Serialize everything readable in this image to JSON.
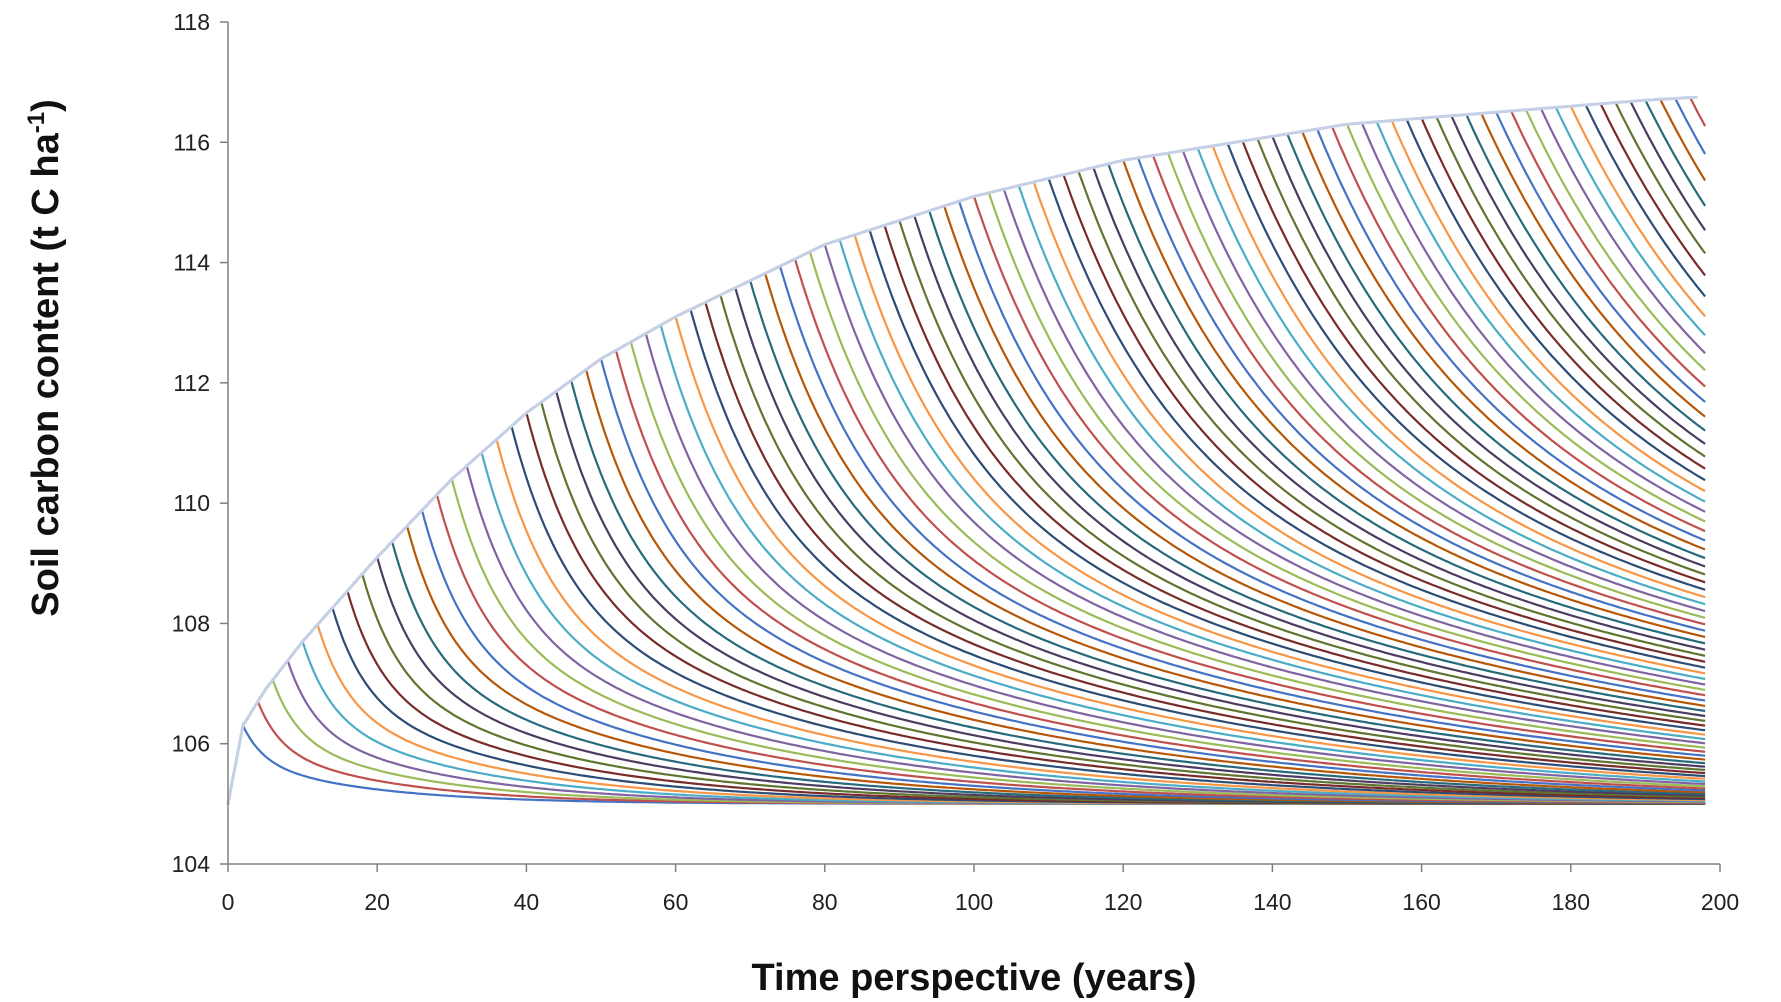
{
  "chart_data": {
    "type": "line",
    "title": "",
    "xlabel": "Time perspective (years)",
    "ylabel": {
      "text": "Soil carbon content (t C ha",
      "superscript": "-1",
      "suffix": ")"
    },
    "xlim": [
      0,
      200
    ],
    "ylim": [
      104,
      118
    ],
    "x_ticks": [
      0,
      20,
      40,
      60,
      80,
      100,
      120,
      140,
      160,
      180,
      200
    ],
    "y_ticks": [
      104,
      106,
      108,
      110,
      112,
      114,
      116,
      118
    ],
    "grid": false,
    "legend": "none",
    "series_summary": {
      "count": 98,
      "description": "One curve per year in which accumulation stops; each curve follows the envelope then declines toward the baseline",
      "start_value": 105.0,
      "baseline_value": 105.0,
      "envelope": {
        "x": [
          0,
          2,
          5,
          10,
          20,
          30,
          40,
          50,
          60,
          70,
          80,
          90,
          100,
          110,
          120,
          130,
          140,
          150,
          160,
          170,
          180,
          190,
          197
        ],
        "y": [
          105.0,
          106.3,
          106.9,
          107.7,
          109.1,
          110.4,
          111.5,
          112.4,
          113.1,
          113.7,
          114.3,
          114.7,
          115.1,
          115.4,
          115.7,
          115.9,
          116.1,
          116.3,
          116.4,
          116.5,
          116.6,
          116.7,
          116.75
        ]
      },
      "end_x": 198
    },
    "colors": [
      "#4472C4",
      "#C0504D",
      "#9BBB59",
      "#8064A2",
      "#4BACC6",
      "#F79646",
      "#2C4D75",
      "#772C2A",
      "#5F7530",
      "#4D3B62",
      "#276A7C",
      "#B65708"
    ],
    "envelope_color": "#C5D0E6"
  }
}
